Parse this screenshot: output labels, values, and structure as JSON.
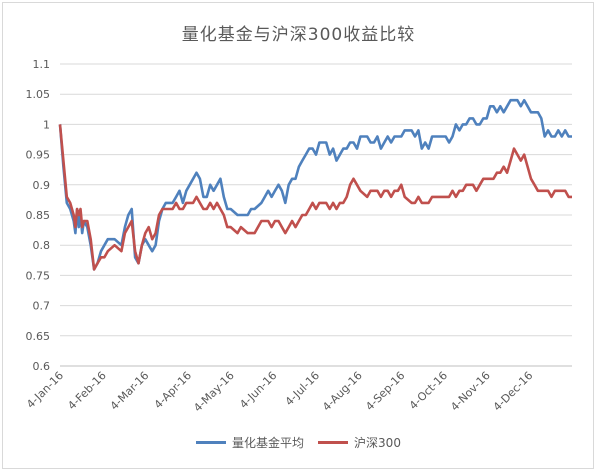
{
  "chart_data": {
    "type": "line",
    "title": "量化基金与沪深300收益比较",
    "xlabel": "",
    "ylabel": "",
    "ylim": [
      0.6,
      1.1
    ],
    "yticks": [
      "0.6",
      "0.65",
      "0.7",
      "0.75",
      "0.8",
      "0.85",
      "0.9",
      "0.95",
      "1",
      "1.05",
      "1.1"
    ],
    "xticks": [
      "4-Jan-16",
      "4-Feb-16",
      "4-Mar-16",
      "4-Apr-16",
      "4-May-16",
      "4-Jun-16",
      "4-Jul-16",
      "4-Aug-16",
      "4-Sep-16",
      "4-Oct-16",
      "4-Nov-16",
      "4-Dec-16"
    ],
    "grid": true,
    "legend": "bottom",
    "series": [
      {
        "name": "量化基金平均",
        "color": "#4f81bd",
        "points": [
          [
            0,
            1.0
          ],
          [
            2,
            0.93
          ],
          [
            4,
            0.87
          ],
          [
            6,
            0.86
          ],
          [
            8,
            0.84
          ],
          [
            9,
            0.82
          ],
          [
            10,
            0.86
          ],
          [
            11,
            0.83
          ],
          [
            12,
            0.85
          ],
          [
            13,
            0.82
          ],
          [
            14,
            0.84
          ],
          [
            16,
            0.83
          ],
          [
            18,
            0.8
          ],
          [
            20,
            0.76
          ],
          [
            22,
            0.77
          ],
          [
            24,
            0.79
          ],
          [
            26,
            0.8
          ],
          [
            28,
            0.81
          ],
          [
            32,
            0.81
          ],
          [
            36,
            0.8
          ],
          [
            38,
            0.83
          ],
          [
            40,
            0.85
          ],
          [
            42,
            0.86
          ],
          [
            44,
            0.78
          ],
          [
            46,
            0.77
          ],
          [
            48,
            0.8
          ],
          [
            50,
            0.81
          ],
          [
            52,
            0.8
          ],
          [
            54,
            0.79
          ],
          [
            56,
            0.8
          ],
          [
            58,
            0.84
          ],
          [
            60,
            0.86
          ],
          [
            62,
            0.87
          ],
          [
            66,
            0.87
          ],
          [
            68,
            0.88
          ],
          [
            70,
            0.89
          ],
          [
            72,
            0.87
          ],
          [
            74,
            0.89
          ],
          [
            76,
            0.9
          ],
          [
            78,
            0.91
          ],
          [
            80,
            0.92
          ],
          [
            82,
            0.91
          ],
          [
            84,
            0.88
          ],
          [
            86,
            0.88
          ],
          [
            88,
            0.9
          ],
          [
            90,
            0.89
          ],
          [
            92,
            0.9
          ],
          [
            94,
            0.91
          ],
          [
            96,
            0.88
          ],
          [
            98,
            0.86
          ],
          [
            100,
            0.86
          ],
          [
            104,
            0.85
          ],
          [
            106,
            0.85
          ],
          [
            110,
            0.85
          ],
          [
            112,
            0.86
          ],
          [
            114,
            0.86
          ],
          [
            118,
            0.87
          ],
          [
            120,
            0.88
          ],
          [
            122,
            0.89
          ],
          [
            124,
            0.88
          ],
          [
            126,
            0.89
          ],
          [
            128,
            0.9
          ],
          [
            130,
            0.89
          ],
          [
            132,
            0.87
          ],
          [
            134,
            0.9
          ],
          [
            136,
            0.91
          ],
          [
            138,
            0.91
          ],
          [
            140,
            0.93
          ],
          [
            142,
            0.94
          ],
          [
            144,
            0.95
          ],
          [
            146,
            0.96
          ],
          [
            148,
            0.96
          ],
          [
            150,
            0.95
          ],
          [
            152,
            0.97
          ],
          [
            156,
            0.97
          ],
          [
            158,
            0.95
          ],
          [
            160,
            0.96
          ],
          [
            162,
            0.94
          ],
          [
            164,
            0.95
          ],
          [
            166,
            0.96
          ],
          [
            168,
            0.96
          ],
          [
            170,
            0.97
          ],
          [
            172,
            0.97
          ],
          [
            174,
            0.96
          ],
          [
            176,
            0.98
          ],
          [
            180,
            0.98
          ],
          [
            182,
            0.97
          ],
          [
            184,
            0.97
          ],
          [
            186,
            0.98
          ],
          [
            188,
            0.96
          ],
          [
            190,
            0.97
          ],
          [
            192,
            0.98
          ],
          [
            194,
            0.97
          ],
          [
            196,
            0.98
          ],
          [
            198,
            0.98
          ],
          [
            200,
            0.98
          ],
          [
            202,
            0.99
          ],
          [
            206,
            0.99
          ],
          [
            208,
            0.98
          ],
          [
            210,
            0.99
          ],
          [
            212,
            0.96
          ],
          [
            214,
            0.97
          ],
          [
            216,
            0.96
          ],
          [
            218,
            0.98
          ],
          [
            222,
            0.98
          ],
          [
            224,
            0.98
          ],
          [
            226,
            0.98
          ],
          [
            228,
            0.97
          ],
          [
            230,
            0.98
          ],
          [
            232,
            1.0
          ],
          [
            234,
            0.99
          ],
          [
            236,
            1.0
          ],
          [
            238,
            1.0
          ],
          [
            240,
            1.01
          ],
          [
            242,
            1.01
          ],
          [
            244,
            1.0
          ],
          [
            246,
            1.0
          ],
          [
            248,
            1.01
          ],
          [
            250,
            1.01
          ],
          [
            252,
            1.03
          ],
          [
            254,
            1.03
          ],
          [
            256,
            1.02
          ],
          [
            258,
            1.03
          ],
          [
            260,
            1.02
          ],
          [
            262,
            1.03
          ],
          [
            264,
            1.04
          ],
          [
            266,
            1.04
          ],
          [
            268,
            1.04
          ],
          [
            270,
            1.03
          ],
          [
            272,
            1.04
          ],
          [
            274,
            1.03
          ],
          [
            276,
            1.02
          ],
          [
            278,
            1.02
          ],
          [
            280,
            1.02
          ],
          [
            282,
            1.01
          ],
          [
            284,
            0.98
          ],
          [
            286,
            0.99
          ],
          [
            288,
            0.98
          ],
          [
            290,
            0.98
          ],
          [
            292,
            0.99
          ],
          [
            294,
            0.98
          ],
          [
            296,
            0.99
          ],
          [
            298,
            0.98
          ],
          [
            300,
            0.98
          ]
        ]
      },
      {
        "name": "沪深300",
        "color": "#c0504d",
        "points": [
          [
            0,
            1.0
          ],
          [
            2,
            0.94
          ],
          [
            4,
            0.88
          ],
          [
            6,
            0.87
          ],
          [
            8,
            0.85
          ],
          [
            9,
            0.83
          ],
          [
            10,
            0.86
          ],
          [
            11,
            0.85
          ],
          [
            12,
            0.86
          ],
          [
            13,
            0.83
          ],
          [
            14,
            0.84
          ],
          [
            16,
            0.84
          ],
          [
            18,
            0.81
          ],
          [
            20,
            0.76
          ],
          [
            22,
            0.77
          ],
          [
            24,
            0.78
          ],
          [
            26,
            0.78
          ],
          [
            28,
            0.79
          ],
          [
            32,
            0.8
          ],
          [
            36,
            0.79
          ],
          [
            38,
            0.82
          ],
          [
            40,
            0.83
          ],
          [
            42,
            0.84
          ],
          [
            44,
            0.79
          ],
          [
            46,
            0.77
          ],
          [
            48,
            0.8
          ],
          [
            50,
            0.82
          ],
          [
            52,
            0.83
          ],
          [
            54,
            0.81
          ],
          [
            56,
            0.82
          ],
          [
            58,
            0.85
          ],
          [
            60,
            0.86
          ],
          [
            62,
            0.86
          ],
          [
            66,
            0.86
          ],
          [
            68,
            0.87
          ],
          [
            70,
            0.86
          ],
          [
            72,
            0.86
          ],
          [
            74,
            0.87
          ],
          [
            76,
            0.87
          ],
          [
            78,
            0.87
          ],
          [
            80,
            0.88
          ],
          [
            82,
            0.87
          ],
          [
            84,
            0.86
          ],
          [
            86,
            0.86
          ],
          [
            88,
            0.87
          ],
          [
            90,
            0.86
          ],
          [
            92,
            0.87
          ],
          [
            94,
            0.86
          ],
          [
            96,
            0.85
          ],
          [
            98,
            0.83
          ],
          [
            100,
            0.83
          ],
          [
            104,
            0.82
          ],
          [
            106,
            0.83
          ],
          [
            110,
            0.82
          ],
          [
            112,
            0.82
          ],
          [
            114,
            0.82
          ],
          [
            118,
            0.84
          ],
          [
            120,
            0.84
          ],
          [
            122,
            0.84
          ],
          [
            124,
            0.83
          ],
          [
            126,
            0.84
          ],
          [
            128,
            0.84
          ],
          [
            130,
            0.83
          ],
          [
            132,
            0.82
          ],
          [
            134,
            0.83
          ],
          [
            136,
            0.84
          ],
          [
            138,
            0.83
          ],
          [
            140,
            0.84
          ],
          [
            142,
            0.85
          ],
          [
            144,
            0.85
          ],
          [
            146,
            0.86
          ],
          [
            148,
            0.87
          ],
          [
            150,
            0.86
          ],
          [
            152,
            0.87
          ],
          [
            156,
            0.87
          ],
          [
            158,
            0.86
          ],
          [
            160,
            0.87
          ],
          [
            162,
            0.86
          ],
          [
            164,
            0.87
          ],
          [
            166,
            0.87
          ],
          [
            168,
            0.88
          ],
          [
            170,
            0.9
          ],
          [
            172,
            0.91
          ],
          [
            174,
            0.9
          ],
          [
            176,
            0.89
          ],
          [
            180,
            0.88
          ],
          [
            182,
            0.89
          ],
          [
            184,
            0.89
          ],
          [
            186,
            0.89
          ],
          [
            188,
            0.88
          ],
          [
            190,
            0.89
          ],
          [
            192,
            0.89
          ],
          [
            194,
            0.88
          ],
          [
            196,
            0.89
          ],
          [
            198,
            0.89
          ],
          [
            200,
            0.9
          ],
          [
            202,
            0.88
          ],
          [
            206,
            0.87
          ],
          [
            208,
            0.87
          ],
          [
            210,
            0.88
          ],
          [
            212,
            0.87
          ],
          [
            214,
            0.87
          ],
          [
            216,
            0.87
          ],
          [
            218,
            0.88
          ],
          [
            222,
            0.88
          ],
          [
            224,
            0.88
          ],
          [
            226,
            0.88
          ],
          [
            228,
            0.88
          ],
          [
            230,
            0.89
          ],
          [
            232,
            0.88
          ],
          [
            234,
            0.89
          ],
          [
            236,
            0.89
          ],
          [
            238,
            0.9
          ],
          [
            240,
            0.9
          ],
          [
            242,
            0.9
          ],
          [
            244,
            0.89
          ],
          [
            246,
            0.9
          ],
          [
            248,
            0.91
          ],
          [
            250,
            0.91
          ],
          [
            252,
            0.91
          ],
          [
            254,
            0.91
          ],
          [
            256,
            0.92
          ],
          [
            258,
            0.92
          ],
          [
            260,
            0.93
          ],
          [
            262,
            0.92
          ],
          [
            264,
            0.94
          ],
          [
            266,
            0.96
          ],
          [
            268,
            0.95
          ],
          [
            270,
            0.94
          ],
          [
            272,
            0.95
          ],
          [
            274,
            0.93
          ],
          [
            276,
            0.91
          ],
          [
            278,
            0.9
          ],
          [
            280,
            0.89
          ],
          [
            282,
            0.89
          ],
          [
            284,
            0.89
          ],
          [
            286,
            0.89
          ],
          [
            288,
            0.88
          ],
          [
            290,
            0.89
          ],
          [
            292,
            0.89
          ],
          [
            294,
            0.89
          ],
          [
            296,
            0.89
          ],
          [
            298,
            0.88
          ],
          [
            300,
            0.88
          ]
        ]
      }
    ]
  }
}
